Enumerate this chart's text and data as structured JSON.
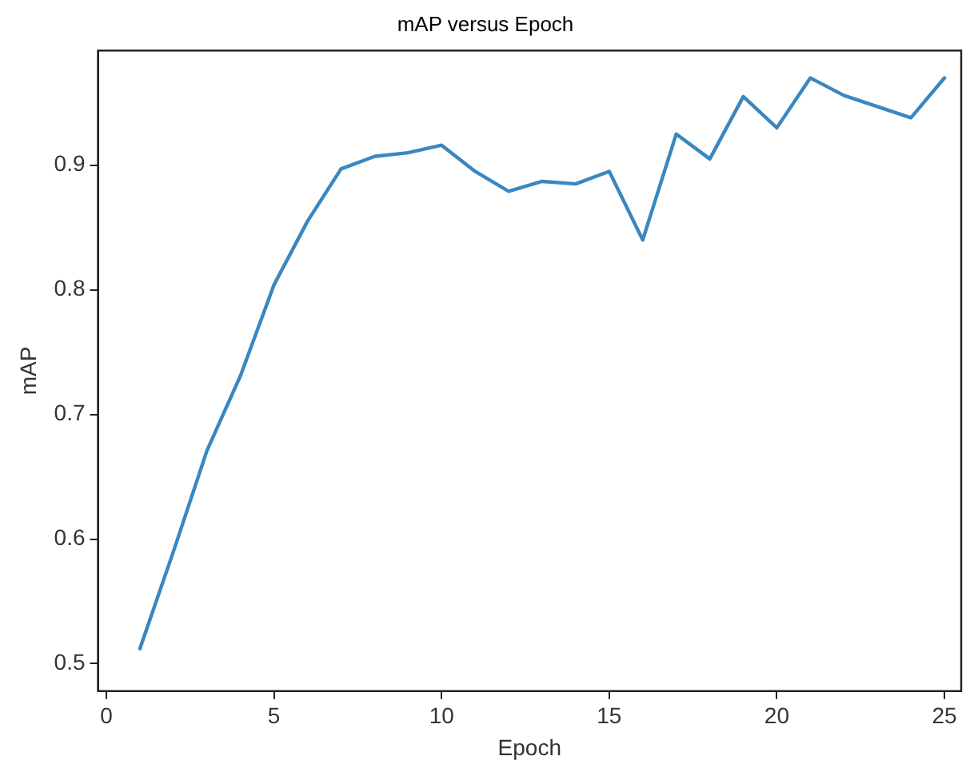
{
  "chart_data": {
    "type": "line",
    "title": "mAP versus Epoch",
    "xlabel": "Epoch",
    "ylabel": "mAP",
    "x": [
      1,
      2,
      3,
      4,
      5,
      6,
      7,
      8,
      9,
      10,
      11,
      12,
      13,
      14,
      15,
      16,
      17,
      18,
      19,
      20,
      21,
      22,
      23,
      24,
      25
    ],
    "series": [
      {
        "color": "#3a87c0",
        "values": [
          0.512,
          0.59,
          0.671,
          0.731,
          0.804,
          0.855,
          0.897,
          0.907,
          0.91,
          0.916,
          0.895,
          0.879,
          0.887,
          0.885,
          0.895,
          0.84,
          0.925,
          0.905,
          0.955,
          0.93,
          0.97,
          0.956,
          0.947,
          0.938,
          0.97
        ]
      }
    ],
    "xlim": [
      -0.25,
      25.5
    ],
    "xticks": [
      0,
      5,
      10,
      15,
      20,
      25
    ],
    "ylim": [
      0.478,
      0.992
    ],
    "yticks": [
      0.5,
      0.6,
      0.7,
      0.8,
      0.9
    ],
    "grid": false,
    "legend": false,
    "marker": "none",
    "line_style": "solid"
  }
}
